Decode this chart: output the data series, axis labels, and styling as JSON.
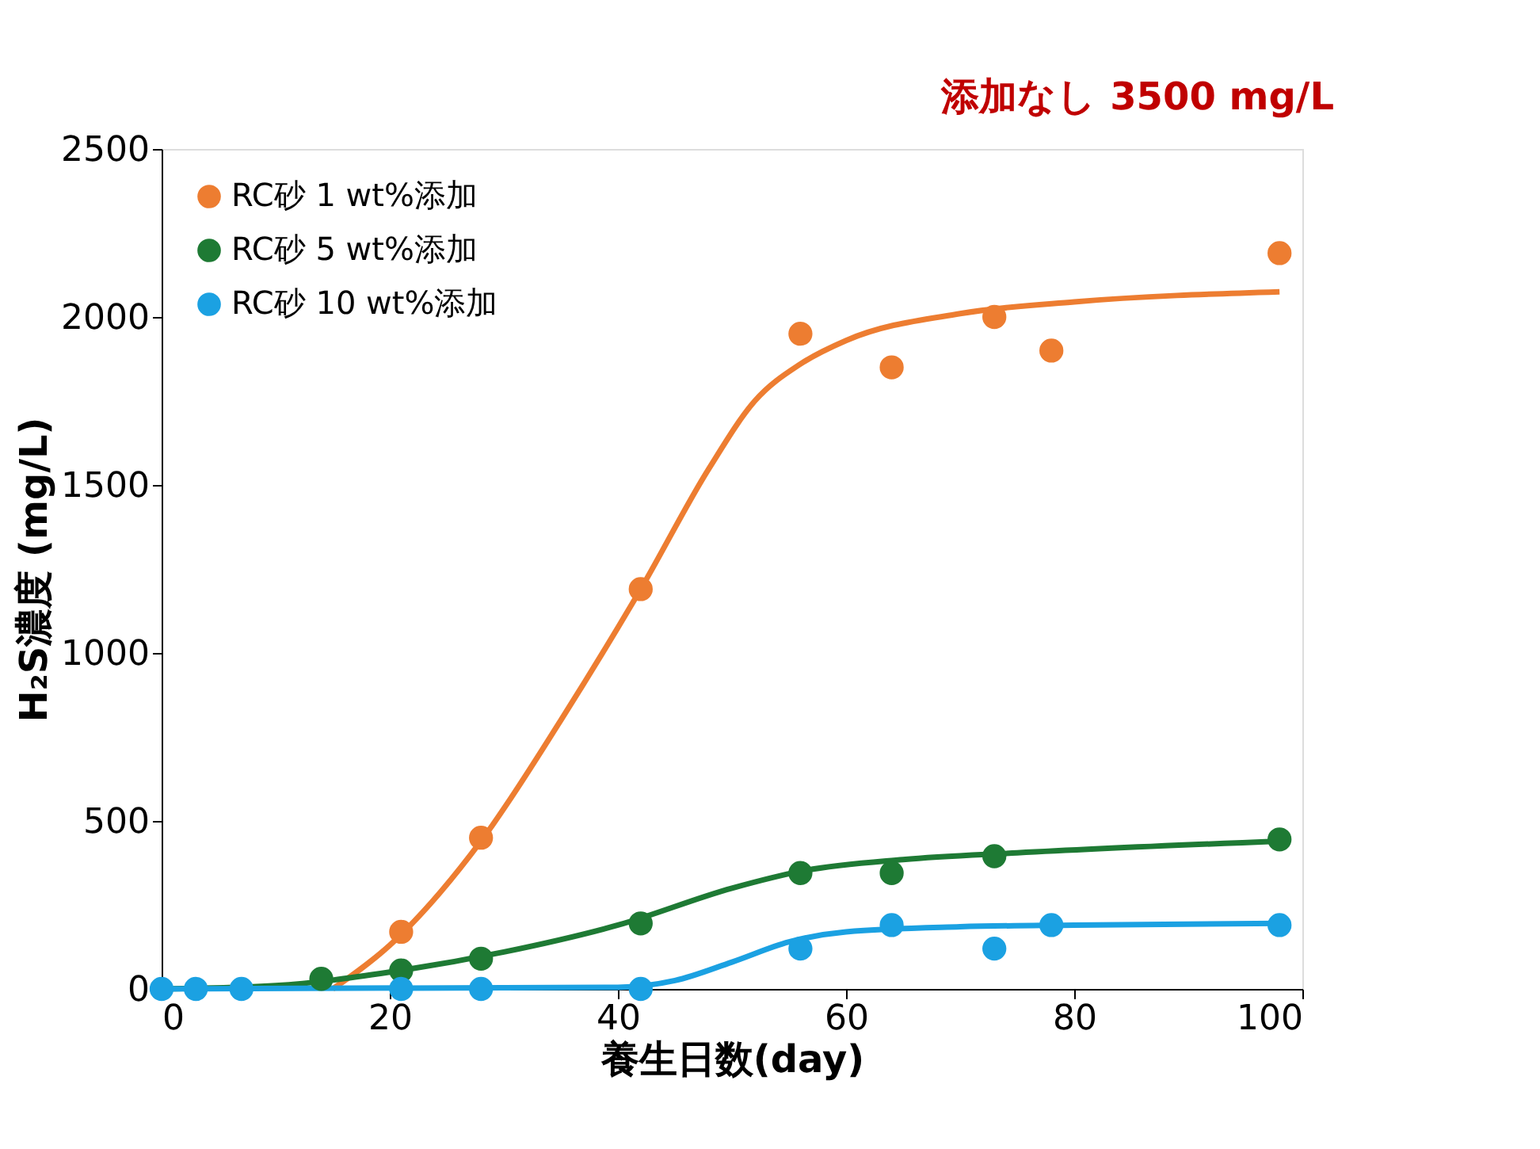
{
  "chart_data": {
    "type": "scatter",
    "xlabel": "養生日数(day)",
    "ylabel": "H₂S濃度 (mg/L)",
    "xlim": [
      0,
      100
    ],
    "xticks": [
      0,
      20,
      40,
      60,
      80,
      100
    ],
    "ylim": [
      0,
      2500
    ],
    "yticks": [
      0,
      500,
      1000,
      1500,
      2000,
      2500
    ],
    "grid": false,
    "legend": "top left",
    "marker": "circle",
    "annotations": [
      "添加なし 3500 mg/L"
    ],
    "series": [
      {
        "name": "RC砂 1 wt%添加",
        "color": "#ed7d31",
        "x": [
          21,
          28,
          42,
          56,
          64,
          73,
          78,
          98
        ],
        "values": [
          170,
          450,
          1190,
          1950,
          1850,
          2000,
          1900,
          2190
        ]
      },
      {
        "name": "RC砂 5 wt%添加",
        "color": "#1e7a34",
        "x": [
          14,
          21,
          28,
          42,
          56,
          64,
          73,
          98
        ],
        "values": [
          30,
          55,
          90,
          195,
          345,
          345,
          395,
          445
        ]
      },
      {
        "name": "RC砂 10 wt%添加",
        "color": "#1ba1e2",
        "x": [
          0,
          3,
          7,
          21,
          28,
          42,
          56,
          64,
          73,
          78,
          98
        ],
        "values": [
          0,
          0,
          0,
          0,
          0,
          0,
          120,
          190,
          120,
          190,
          190
        ]
      },
      {
        "color": "#ed7d31",
        "type": "line",
        "marker": "none",
        "line_style": "solid",
        "x": [
          15,
          20,
          28,
          35,
          42,
          48,
          52,
          56,
          60,
          70,
          80,
          98
        ],
        "values": [
          0,
          130,
          440,
          800,
          1190,
          1550,
          1750,
          1860,
          1930,
          2010,
          2045,
          2075
        ]
      },
      {
        "color": "#1e7a34",
        "type": "line",
        "marker": "none",
        "line_style": "solid",
        "x": [
          0,
          10,
          20,
          30,
          40,
          50,
          56,
          65,
          75,
          98
        ],
        "values": [
          0,
          10,
          50,
          110,
          190,
          300,
          350,
          385,
          405,
          440
        ]
      },
      {
        "color": "#1ba1e2",
        "type": "line",
        "marker": "none",
        "line_style": "solid",
        "x": [
          0,
          40,
          45,
          50,
          55,
          60,
          70,
          80,
          98
        ],
        "values": [
          0,
          5,
          25,
          80,
          140,
          170,
          185,
          190,
          195
        ]
      }
    ]
  }
}
